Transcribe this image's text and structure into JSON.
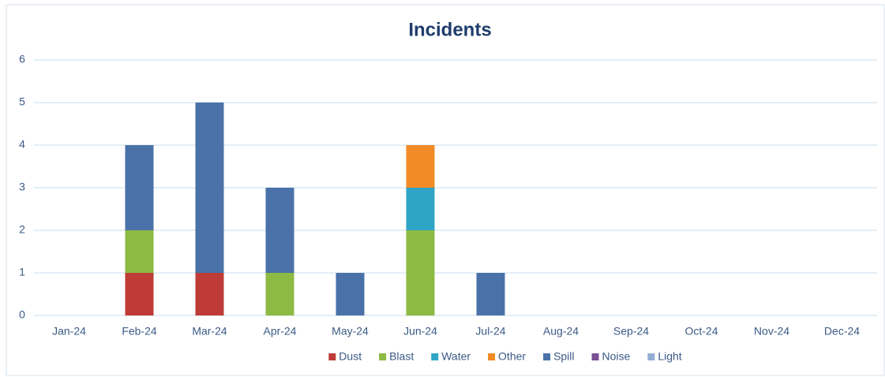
{
  "chart_data": {
    "type": "stacked_bar",
    "title": "Incidents",
    "categories": [
      "Jan-24",
      "Feb-24",
      "Mar-24",
      "Apr-24",
      "May-24",
      "Jun-24",
      "Jul-24",
      "Aug-24",
      "Sep-24",
      "Oct-24",
      "Nov-24",
      "Dec-24"
    ],
    "series": [
      {
        "name": "Dust",
        "color": "#be3b37",
        "values": [
          0,
          1,
          1,
          0,
          0,
          0,
          0,
          0,
          0,
          0,
          0,
          0
        ]
      },
      {
        "name": "Blast",
        "color": "#8dba43",
        "values": [
          0,
          1,
          0,
          1,
          0,
          2,
          0,
          0,
          0,
          0,
          0,
          0
        ]
      },
      {
        "name": "Water",
        "color": "#2fa5c5",
        "values": [
          0,
          0,
          0,
          0,
          0,
          1,
          0,
          0,
          0,
          0,
          0,
          0
        ]
      },
      {
        "name": "Other",
        "color": "#f28a26",
        "values": [
          0,
          0,
          0,
          0,
          0,
          1,
          0,
          0,
          0,
          0,
          0,
          0
        ]
      },
      {
        "name": "Spill",
        "color": "#4a72a8",
        "values": [
          0,
          2,
          4,
          2,
          1,
          0,
          1,
          0,
          0,
          0,
          0,
          0
        ]
      },
      {
        "name": "Noise",
        "color": "#7a4f93",
        "values": [
          0,
          0,
          0,
          0,
          0,
          0,
          0,
          0,
          0,
          0,
          0,
          0
        ]
      },
      {
        "name": "Light",
        "color": "#94aed3",
        "values": [
          0,
          0,
          0,
          0,
          0,
          0,
          0,
          0,
          0,
          0,
          0,
          0
        ]
      }
    ],
    "ylim": [
      0,
      6
    ],
    "yticks": [
      0,
      1,
      2,
      3,
      4,
      5,
      6
    ],
    "grid": true,
    "legend": "bottom"
  }
}
